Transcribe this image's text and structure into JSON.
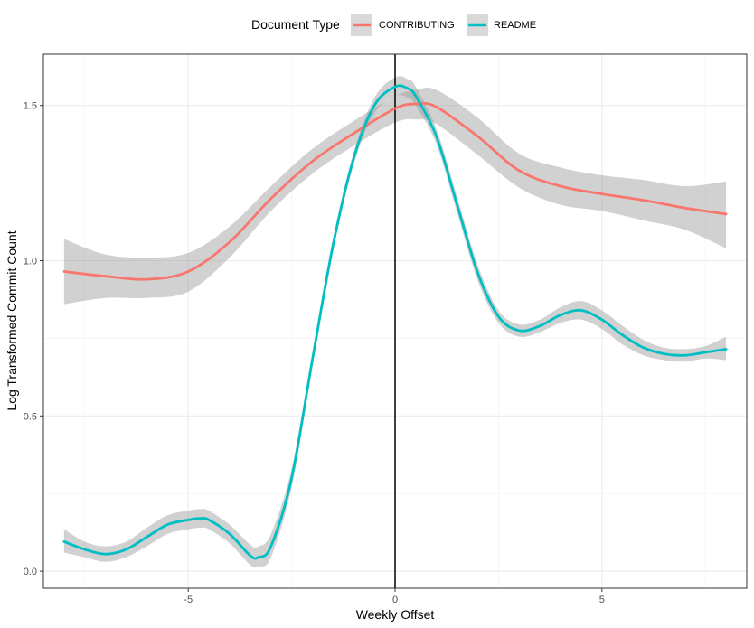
{
  "chart_data": {
    "type": "line",
    "xlabel": "Weekly Offset",
    "ylabel": "Log Transformed Commit Count",
    "xlim": [
      -8.5,
      8.5
    ],
    "ylim": [
      -0.055,
      1.665
    ],
    "x_ticks": [
      -5,
      0,
      5
    ],
    "x_tick_labels": [
      "-5",
      "0",
      "5"
    ],
    "y_ticks": [
      0.0,
      0.5,
      1.0,
      1.5
    ],
    "y_tick_labels": [
      "0.0",
      "0.5",
      "1.0",
      "1.5"
    ],
    "grid": true,
    "vertical_reference_line": 0,
    "legend": {
      "title": "Document Type",
      "placement": "top"
    },
    "series": [
      {
        "name": "CONTRIBUTING",
        "color": "#F8766D",
        "x": [
          -8,
          -7,
          -6,
          -5,
          -4,
          -3,
          -2,
          -1,
          0,
          0.5,
          1,
          2,
          3,
          4,
          5,
          6,
          7,
          8
        ],
        "y": [
          0.965,
          0.95,
          0.94,
          0.965,
          1.06,
          1.2,
          1.32,
          1.41,
          1.49,
          1.505,
          1.495,
          1.4,
          1.29,
          1.24,
          1.215,
          1.195,
          1.17,
          1.15
        ],
        "ci_upper": [
          1.07,
          1.02,
          1.01,
          1.025,
          1.11,
          1.24,
          1.36,
          1.45,
          1.53,
          1.55,
          1.55,
          1.46,
          1.345,
          1.3,
          1.275,
          1.26,
          1.24,
          1.255
        ],
        "ci_lower": [
          0.86,
          0.88,
          0.88,
          0.9,
          1.01,
          1.16,
          1.28,
          1.37,
          1.445,
          1.455,
          1.44,
          1.34,
          1.235,
          1.18,
          1.16,
          1.13,
          1.1,
          1.04
        ]
      },
      {
        "name": "README",
        "color": "#00BFC4",
        "x": [
          -8,
          -7.5,
          -7,
          -6.5,
          -6,
          -5.5,
          -5,
          -4.7,
          -4.5,
          -4,
          -3.5,
          -3.3,
          -3,
          -2.5,
          -2,
          -1.5,
          -1,
          -0.5,
          0,
          0.3,
          0.5,
          1,
          1.5,
          2,
          2.5,
          3,
          3.5,
          4,
          4.5,
          5,
          5.5,
          6,
          6.5,
          7,
          7.5,
          8
        ],
        "y": [
          0.095,
          0.07,
          0.055,
          0.07,
          0.11,
          0.15,
          0.165,
          0.17,
          0.165,
          0.12,
          0.05,
          0.045,
          0.08,
          0.3,
          0.68,
          1.05,
          1.33,
          1.5,
          1.56,
          1.555,
          1.53,
          1.4,
          1.18,
          0.96,
          0.82,
          0.775,
          0.79,
          0.825,
          0.84,
          0.81,
          0.76,
          0.72,
          0.7,
          0.695,
          0.705,
          0.715
        ],
        "ci_upper": [
          0.135,
          0.095,
          0.08,
          0.095,
          0.14,
          0.18,
          0.195,
          0.2,
          0.195,
          0.15,
          0.085,
          0.08,
          0.12,
          0.33,
          0.7,
          1.07,
          1.35,
          1.525,
          1.59,
          1.585,
          1.56,
          1.425,
          1.205,
          0.985,
          0.84,
          0.795,
          0.81,
          0.85,
          0.87,
          0.84,
          0.79,
          0.745,
          0.72,
          0.715,
          0.725,
          0.755
        ],
        "ci_lower": [
          0.06,
          0.045,
          0.03,
          0.045,
          0.08,
          0.12,
          0.135,
          0.14,
          0.135,
          0.09,
          0.02,
          0.015,
          0.045,
          0.27,
          0.66,
          1.03,
          1.31,
          1.475,
          1.53,
          1.525,
          1.5,
          1.375,
          1.155,
          0.935,
          0.8,
          0.755,
          0.77,
          0.8,
          0.81,
          0.78,
          0.73,
          0.695,
          0.68,
          0.675,
          0.685,
          0.68
        ]
      }
    ]
  }
}
